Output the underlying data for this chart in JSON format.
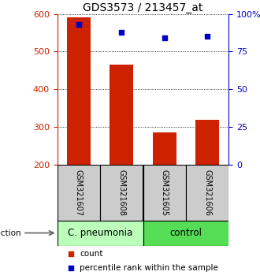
{
  "title": "GDS3573 / 213457_at",
  "samples": [
    "GSM321607",
    "GSM321608",
    "GSM321605",
    "GSM321606"
  ],
  "counts": [
    590,
    465,
    285,
    320
  ],
  "percentiles": [
    93,
    88,
    84,
    85
  ],
  "ylim_left": [
    200,
    600
  ],
  "ylim_right": [
    0,
    100
  ],
  "yticks_left": [
    200,
    300,
    400,
    500,
    600
  ],
  "yticks_right": [
    0,
    25,
    50,
    75,
    100
  ],
  "ytick_labels_right": [
    "0",
    "25",
    "50",
    "75",
    "100%"
  ],
  "bar_color": "#cc2200",
  "dot_color": "#0000cc",
  "group1_label": "C. pneumonia",
  "group2_label": "control",
  "group1_color": "#bbffbb",
  "group2_color": "#55dd55",
  "sample_box_color": "#cccccc",
  "infection_label": "infection",
  "legend_count_label": "count",
  "legend_percentile_label": "percentile rank within the sample",
  "title_fontsize": 10,
  "tick_fontsize": 8,
  "sample_fontsize": 7,
  "group_fontsize": 8.5,
  "legend_fontsize": 7.5
}
